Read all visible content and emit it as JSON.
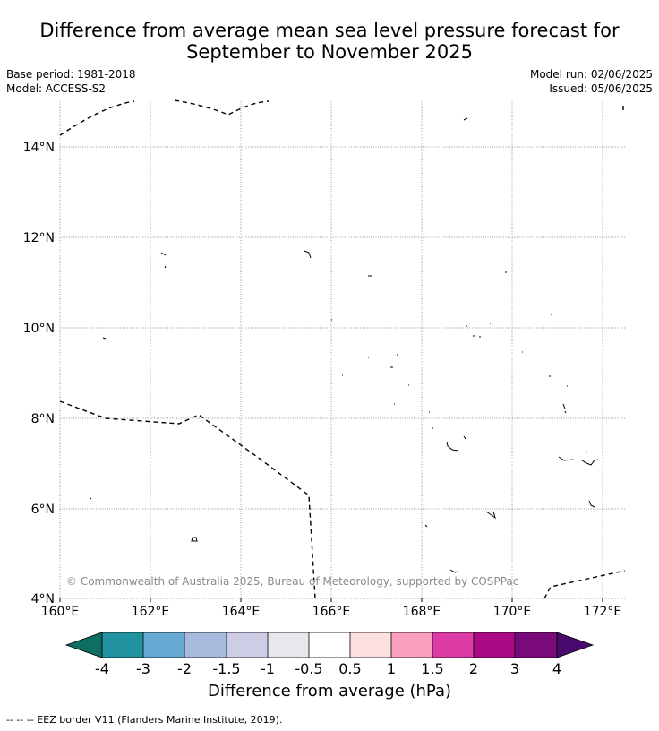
{
  "title_line1": "Difference from average mean sea level pressure forecast for",
  "title_line2": "September to November 2025",
  "meta_left": {
    "base_period": "Base period: 1981-2018",
    "model": "Model: ACCESS-S2"
  },
  "meta_right": {
    "model_run": "Model run: 02/06/2025",
    "issued": "Issued: 05/06/2025"
  },
  "map": {
    "lon_labels": [
      "160°E",
      "162°E",
      "164°E",
      "166°E",
      "168°E",
      "170°E",
      "172°E"
    ],
    "lat_labels": [
      "4°N",
      "6°N",
      "8°N",
      "10°N",
      "12°N",
      "14°N"
    ],
    "copyright": "© Commonwealth of Australia 2025, Bureau of Meteorology, supported by COSPPac",
    "anomaly_field": "no shading (all values between -0.5 and 0.5)"
  },
  "colorbar": {
    "ticks": [
      "-4",
      "-3",
      "-2",
      "-1.5",
      "-1",
      "-0.5",
      "0.5",
      "1",
      "1.5",
      "2",
      "3",
      "4"
    ],
    "colors": [
      "#0e6e63",
      "#2192a0",
      "#66a9d3",
      "#a7bbdc",
      "#cecde6",
      "#e9e7ec",
      "#ffffff",
      "#fde0e1",
      "#f79fbc",
      "#dc3aa4",
      "#ac0a84",
      "#7a0a7b",
      "#480a6e"
    ],
    "label": "Difference from average (hPa)"
  },
  "footer": "--  --  -- EEZ border V11 (Flanders Marine Institute, 2019)."
}
